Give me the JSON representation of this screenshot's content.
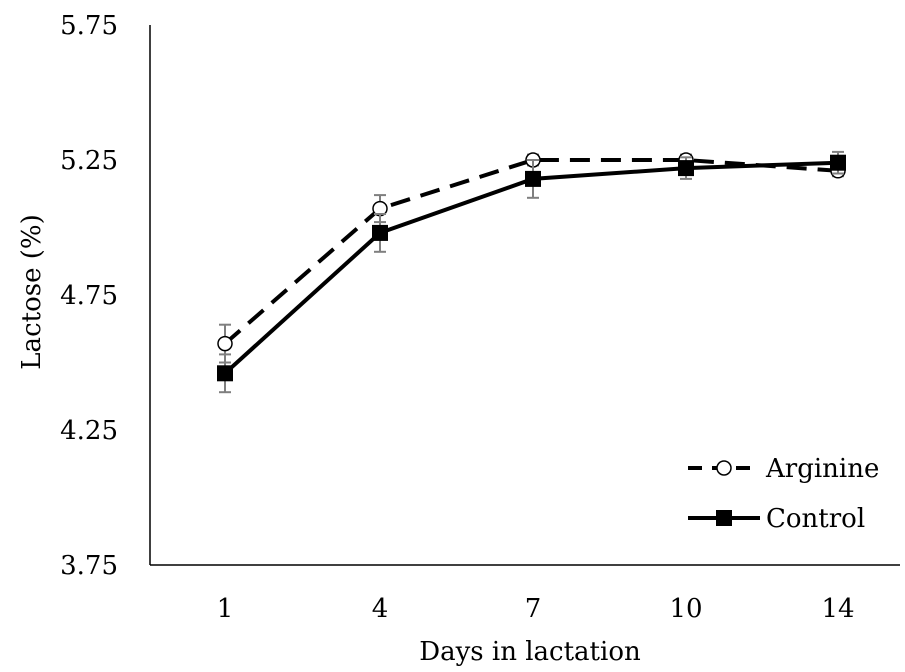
{
  "chart_data": {
    "type": "line",
    "title": "",
    "xlabel": "Days in lactation",
    "ylabel": "Lactose (%)",
    "categories": [
      "1",
      "4",
      "7",
      "10",
      "14"
    ],
    "ylim": [
      3.75,
      5.75
    ],
    "yticks": [
      "3.75",
      "4.25",
      "4.75",
      "5.25",
      "5.75"
    ],
    "grid": false,
    "legend_position": "bottom-right",
    "series": [
      {
        "name": "Arginine",
        "values": [
          4.57,
          5.07,
          5.25,
          5.25,
          5.21
        ],
        "error": [
          0.07,
          0.05,
          0.02,
          0.02,
          0.02
        ],
        "line_style": "dashed",
        "marker": "open-circle",
        "color": "#000000"
      },
      {
        "name": "Control",
        "values": [
          4.46,
          4.98,
          5.18,
          5.22,
          5.24
        ],
        "error": [
          0.07,
          0.07,
          0.07,
          0.04,
          0.04
        ],
        "line_style": "solid",
        "marker": "filled-square",
        "color": "#000000"
      }
    ]
  }
}
